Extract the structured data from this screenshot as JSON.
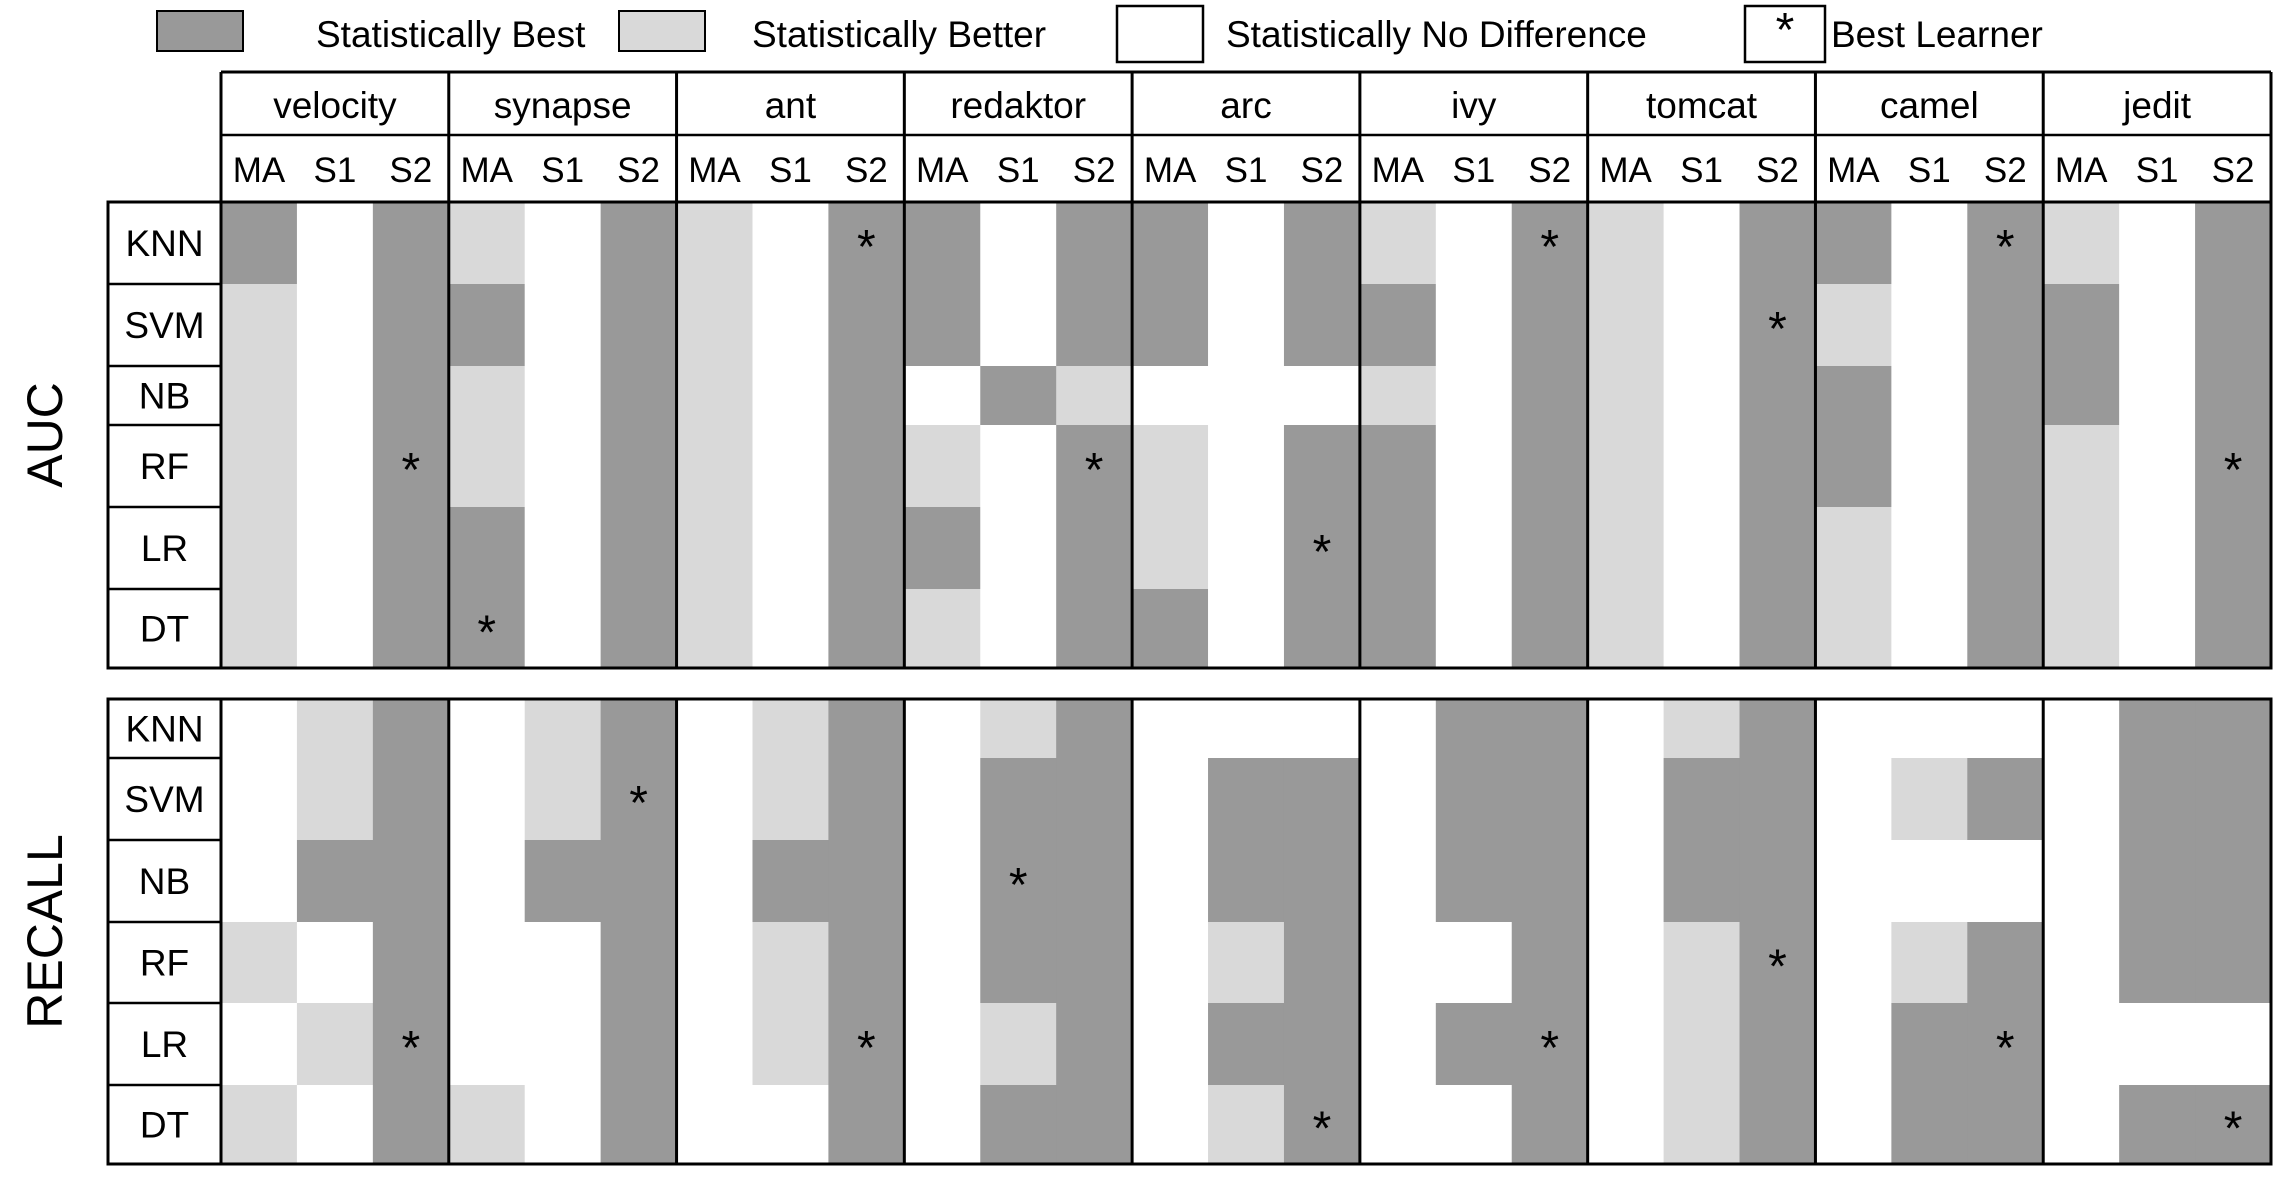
{
  "legend": {
    "best": "Statistically Best",
    "better": "Statistically Better",
    "nodiff": "Statistically No Difference",
    "star_symbol": "*",
    "best_learner": "Best Learner"
  },
  "colors": {
    "best": "#999999",
    "better": "#d9d9d9",
    "nodiff": "#ffffff",
    "border": "#000000"
  },
  "chart_data": {
    "type": "heatmap",
    "datasets": [
      "velocity",
      "synapse",
      "ant",
      "redaktor",
      "arc",
      "ivy",
      "tomcat",
      "camel",
      "jedit"
    ],
    "methods": [
      "MA",
      "S1",
      "S2"
    ],
    "learners": [
      "KNN",
      "SVM",
      "NB",
      "RF",
      "LR",
      "DT"
    ],
    "value_codes": {
      "2": "Statistically Best",
      "1": "Statistically Better",
      "0": "Statistically No Difference"
    },
    "panels": [
      {
        "metric": "AUC",
        "values": [
          [
            2,
            0,
            2,
            1,
            0,
            2,
            1,
            0,
            2,
            2,
            0,
            2,
            2,
            0,
            2,
            1,
            0,
            2,
            1,
            0,
            2,
            2,
            0,
            2,
            1,
            0,
            2
          ],
          [
            1,
            0,
            2,
            2,
            0,
            2,
            1,
            0,
            2,
            2,
            0,
            2,
            2,
            0,
            2,
            2,
            0,
            2,
            1,
            0,
            2,
            1,
            0,
            2,
            2,
            0,
            2
          ],
          [
            1,
            0,
            2,
            1,
            0,
            2,
            1,
            0,
            2,
            0,
            2,
            1,
            0,
            0,
            0,
            1,
            0,
            2,
            1,
            0,
            2,
            2,
            0,
            2,
            2,
            0,
            2
          ],
          [
            1,
            0,
            2,
            1,
            0,
            2,
            1,
            0,
            2,
            1,
            0,
            2,
            1,
            0,
            2,
            2,
            0,
            2,
            1,
            0,
            2,
            2,
            0,
            2,
            1,
            0,
            2
          ],
          [
            1,
            0,
            2,
            2,
            0,
            2,
            1,
            0,
            2,
            2,
            0,
            2,
            1,
            0,
            2,
            2,
            0,
            2,
            1,
            0,
            2,
            1,
            0,
            2,
            1,
            0,
            2
          ],
          [
            1,
            0,
            2,
            2,
            0,
            2,
            1,
            0,
            2,
            1,
            0,
            2,
            2,
            0,
            2,
            2,
            0,
            2,
            1,
            0,
            2,
            1,
            0,
            2,
            1,
            0,
            2
          ]
        ],
        "best_learner": [
          [
            "RF",
            "S2"
          ],
          [
            "DT",
            "MA"
          ],
          [
            "KNN",
            "S2"
          ],
          [
            "RF",
            "S2"
          ],
          [
            "LR",
            "S2"
          ],
          [
            "KNN",
            "S2"
          ],
          [
            "SVM",
            "S2"
          ],
          [
            "KNN",
            "S2"
          ],
          [
            "RF",
            "S2"
          ]
        ]
      },
      {
        "metric": "RECALL",
        "values": [
          [
            0,
            1,
            2,
            0,
            1,
            2,
            0,
            1,
            2,
            0,
            1,
            2,
            0,
            0,
            0,
            0,
            2,
            2,
            0,
            1,
            2,
            0,
            0,
            0,
            0,
            2,
            2
          ],
          [
            0,
            1,
            2,
            0,
            1,
            2,
            0,
            1,
            2,
            0,
            2,
            2,
            0,
            2,
            2,
            0,
            2,
            2,
            0,
            2,
            2,
            0,
            1,
            2,
            0,
            2,
            2
          ],
          [
            0,
            2,
            2,
            0,
            2,
            2,
            0,
            2,
            2,
            0,
            2,
            2,
            0,
            2,
            2,
            0,
            2,
            2,
            0,
            2,
            2,
            0,
            0,
            0,
            0,
            2,
            2
          ],
          [
            1,
            0,
            2,
            0,
            0,
            2,
            0,
            1,
            2,
            0,
            2,
            2,
            0,
            1,
            2,
            0,
            0,
            2,
            0,
            1,
            2,
            0,
            1,
            2,
            0,
            2,
            2
          ],
          [
            0,
            1,
            2,
            0,
            0,
            2,
            0,
            1,
            2,
            0,
            1,
            2,
            0,
            2,
            2,
            0,
            2,
            2,
            0,
            1,
            2,
            0,
            2,
            2,
            0,
            0,
            0
          ],
          [
            1,
            0,
            2,
            1,
            0,
            2,
            0,
            0,
            2,
            0,
            2,
            2,
            0,
            1,
            2,
            0,
            0,
            2,
            0,
            1,
            2,
            0,
            2,
            2,
            0,
            2,
            2
          ]
        ],
        "best_learner": [
          [
            "LR",
            "S2"
          ],
          [
            "SVM",
            "S2"
          ],
          [
            "LR",
            "S2"
          ],
          [
            "NB",
            "S1"
          ],
          [
            "DT",
            "S2"
          ],
          [
            "LR",
            "S2"
          ],
          [
            "RF",
            "S2"
          ],
          [
            "LR",
            "S2"
          ],
          [
            "DT",
            "S2"
          ]
        ]
      }
    ]
  }
}
